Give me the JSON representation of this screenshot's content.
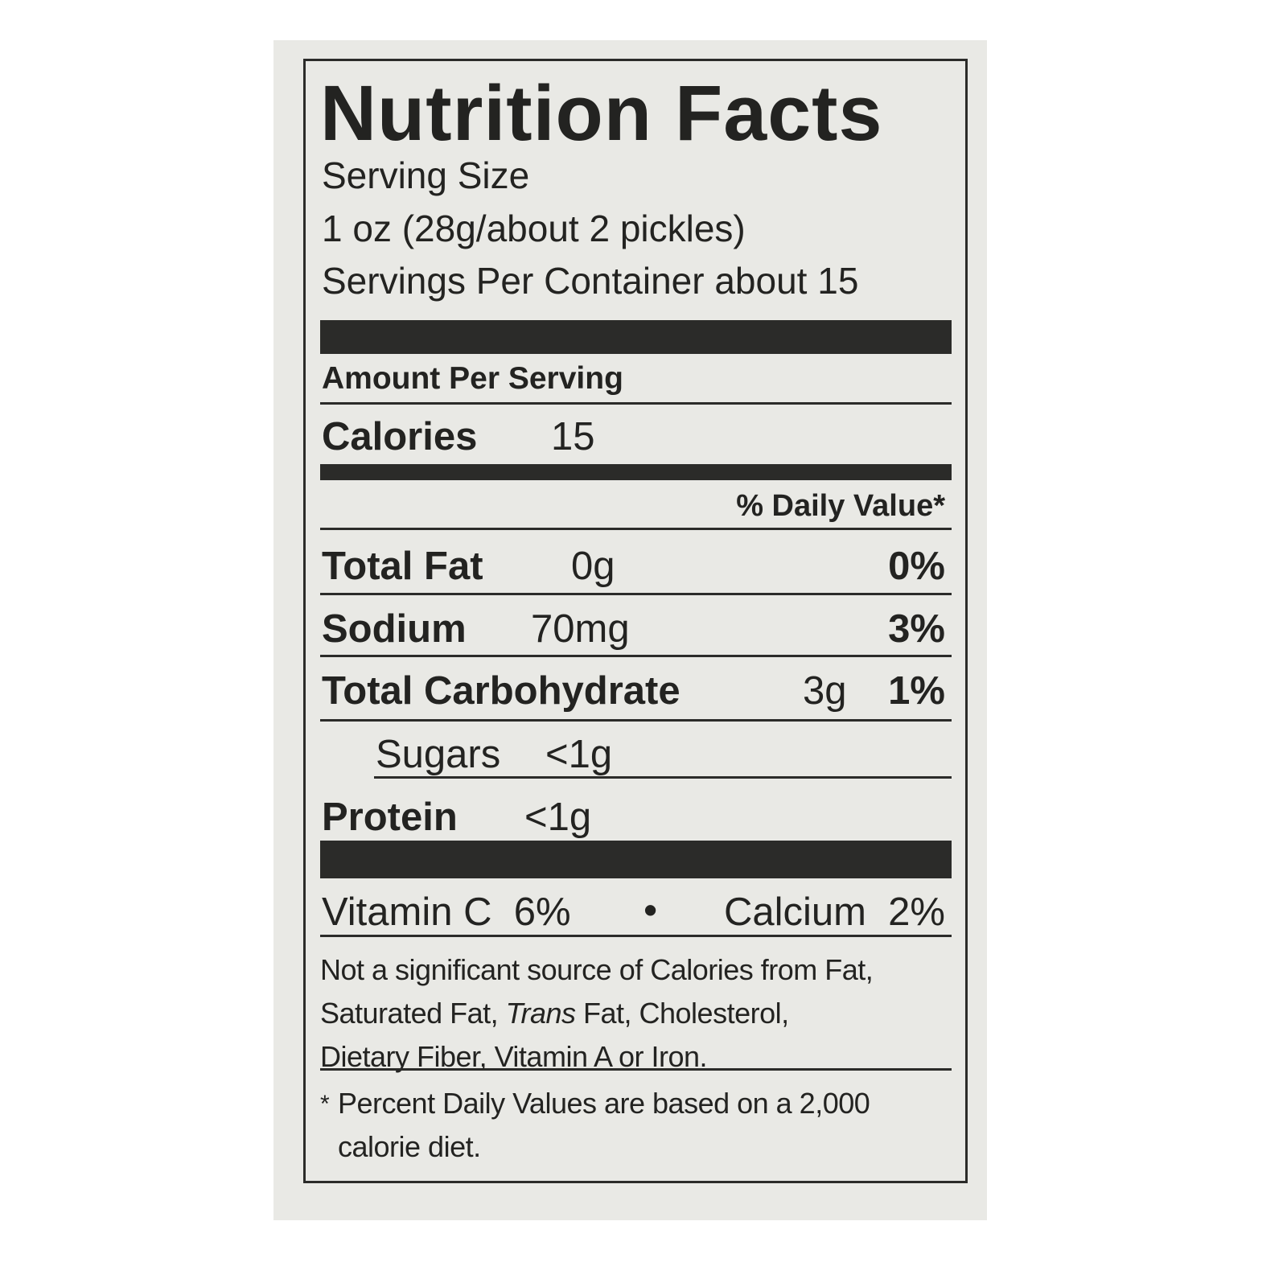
{
  "title": "Nutrition Facts",
  "serving_size_label": "Serving Size",
  "serving_size_value": "1 oz (28g/about 2 pickles)",
  "servings_per_container": "Servings Per Container about 15",
  "amount_per_serving": "Amount Per Serving",
  "calories": {
    "label": "Calories",
    "value": "15"
  },
  "daily_value_header": "% Daily Value*",
  "nutrients": [
    {
      "label": "Total Fat",
      "amount": "0g",
      "dv": "0%"
    },
    {
      "label": "Sodium",
      "amount": "70mg",
      "dv": "3%"
    },
    {
      "label": "Total Carbohydrate",
      "amount": "3g",
      "dv": "1%"
    },
    {
      "label": "Sugars",
      "amount": "<1g",
      "dv": ""
    },
    {
      "label": "Protein",
      "amount": "<1g",
      "dv": ""
    }
  ],
  "vitamins": {
    "vitamin_c": "Vitamin C  6%",
    "separator": "•",
    "calcium": "Calcium  2%"
  },
  "footnote_not_significant": [
    "Not a significant source of Calories from Fat,",
    "Saturated Fat, ",
    "Trans",
    " Fat, Cholesterol,",
    "Dietary Fiber, Vitamin A or Iron."
  ],
  "footnote_dv": {
    "asterisk": "*",
    "lines": [
      "Percent Daily Values are based on a 2,000",
      "calorie diet."
    ]
  }
}
